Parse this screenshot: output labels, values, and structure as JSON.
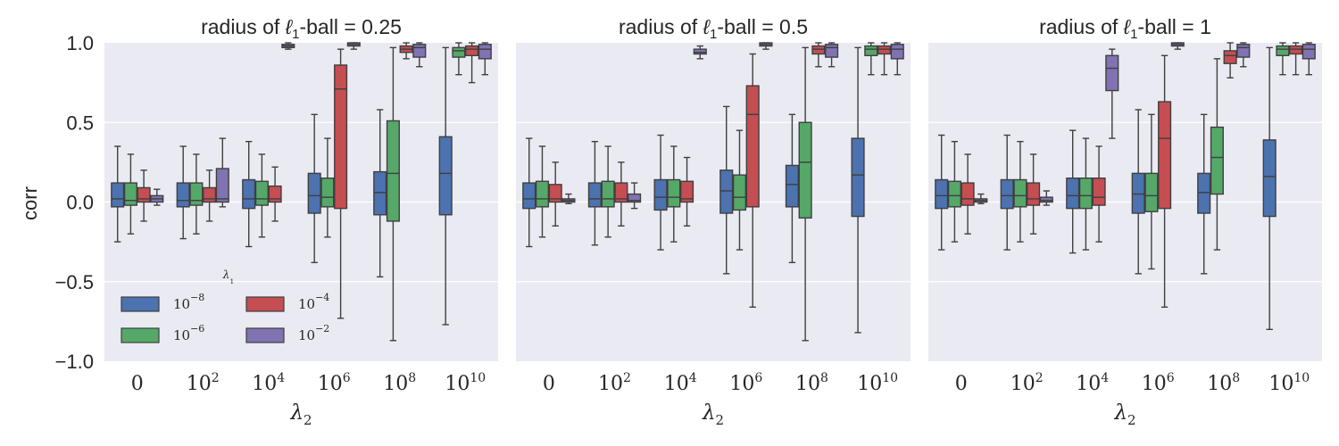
{
  "figure": {
    "ylabel": "corr",
    "xlabel": "λ2",
    "legend_title": "λ1",
    "legend_labels": [
      "10^-8",
      "10^-6",
      "10^-4",
      "10^-2"
    ],
    "legend_placement": "lower-left (first panel)",
    "style": "seaborn darkgrid",
    "background": "#EAEAF2",
    "grid": true
  },
  "colors": {
    "series": [
      "#4C72B0",
      "#55A868",
      "#C44E52",
      "#8172B2"
    ],
    "edge": "#3f3f3f"
  },
  "chart_data": [
    {
      "type": "box",
      "title": "radius of ℓ1-ball = 0.25",
      "xlabel": "λ2",
      "ylabel": "corr",
      "ylim": [
        -1.0,
        1.0
      ],
      "yticks": [
        "1.0",
        "0.5",
        "0.0",
        "−0.5",
        "−1.0"
      ],
      "categories": [
        "0",
        "10^2",
        "10^4",
        "10^6",
        "10^8",
        "10^10"
      ],
      "series": [
        {
          "name": "10^-8",
          "boxes": [
            {
              "q1": -0.03,
              "med": 0.02,
              "q3": 0.12,
              "wlo": -0.25,
              "whi": 0.35
            },
            {
              "q1": -0.03,
              "med": 0.01,
              "q3": 0.12,
              "wlo": -0.23,
              "whi": 0.35
            },
            {
              "q1": -0.04,
              "med": 0.02,
              "q3": 0.14,
              "wlo": -0.28,
              "whi": 0.38
            },
            {
              "q1": -0.07,
              "med": 0.04,
              "q3": 0.18,
              "wlo": -0.38,
              "whi": 0.55
            },
            {
              "q1": -0.08,
              "med": 0.06,
              "q3": 0.19,
              "wlo": -0.47,
              "whi": 0.58
            },
            {
              "q1": -0.08,
              "med": 0.18,
              "q3": 0.41,
              "wlo": -0.77,
              "whi": 0.97
            }
          ]
        },
        {
          "name": "10^-6",
          "boxes": [
            {
              "q1": -0.02,
              "med": 0.01,
              "q3": 0.12,
              "wlo": -0.2,
              "whi": 0.3
            },
            {
              "q1": -0.02,
              "med": 0.01,
              "q3": 0.12,
              "wlo": -0.2,
              "whi": 0.3
            },
            {
              "q1": -0.02,
              "med": 0.02,
              "q3": 0.13,
              "wlo": -0.22,
              "whi": 0.3
            },
            {
              "q1": -0.03,
              "med": 0.03,
              "q3": 0.15,
              "wlo": -0.22,
              "whi": 0.4
            },
            {
              "q1": -0.12,
              "med": 0.18,
              "q3": 0.51,
              "wlo": -0.87,
              "whi": 0.97
            },
            {
              "q1": 0.91,
              "med": 0.95,
              "q3": 0.97,
              "wlo": 0.8,
              "whi": 1.0
            }
          ]
        },
        {
          "name": "10^-4",
          "boxes": [
            {
              "q1": 0.0,
              "med": 0.02,
              "q3": 0.09,
              "wlo": -0.12,
              "whi": 0.2
            },
            {
              "q1": 0.0,
              "med": 0.02,
              "q3": 0.09,
              "wlo": -0.12,
              "whi": 0.2
            },
            {
              "q1": 0.0,
              "med": 0.02,
              "q3": 0.1,
              "wlo": -0.12,
              "whi": 0.22
            },
            {
              "q1": -0.04,
              "med": 0.71,
              "q3": 0.86,
              "wlo": -0.73,
              "whi": 0.96
            },
            {
              "q1": 0.94,
              "med": 0.96,
              "q3": 0.98,
              "wlo": 0.9,
              "whi": 1.0
            },
            {
              "q1": 0.92,
              "med": 0.96,
              "q3": 0.98,
              "wlo": 0.75,
              "whi": 1.0
            }
          ]
        },
        {
          "name": "10^-2",
          "boxes": [
            {
              "q1": 0.0,
              "med": 0.02,
              "q3": 0.04,
              "wlo": -0.02,
              "whi": 0.08
            },
            {
              "q1": 0.0,
              "med": 0.02,
              "q3": 0.21,
              "wlo": -0.03,
              "whi": 0.4
            },
            {
              "q1": 0.97,
              "med": 0.98,
              "q3": 0.99,
              "wlo": 0.96,
              "whi": 1.0
            },
            {
              "q1": 0.98,
              "med": 0.99,
              "q3": 1.0,
              "wlo": 0.96,
              "whi": 1.0
            },
            {
              "q1": 0.91,
              "med": 0.97,
              "q3": 0.99,
              "wlo": 0.85,
              "whi": 1.0
            },
            {
              "q1": 0.9,
              "med": 0.96,
              "q3": 0.99,
              "wlo": 0.8,
              "whi": 1.0
            }
          ]
        }
      ]
    },
    {
      "type": "box",
      "title": "radius of ℓ1-ball = 0.5",
      "xlabel": "λ2",
      "ylim": [
        -1.0,
        1.0
      ],
      "categories": [
        "0",
        "10^2",
        "10^4",
        "10^6",
        "10^8",
        "10^10"
      ],
      "series": [
        {
          "name": "10^-8",
          "boxes": [
            {
              "q1": -0.04,
              "med": 0.02,
              "q3": 0.12,
              "wlo": -0.28,
              "whi": 0.4
            },
            {
              "q1": -0.03,
              "med": 0.02,
              "q3": 0.12,
              "wlo": -0.27,
              "whi": 0.38
            },
            {
              "q1": -0.05,
              "med": 0.03,
              "q3": 0.14,
              "wlo": -0.3,
              "whi": 0.42
            },
            {
              "q1": -0.07,
              "med": 0.07,
              "q3": 0.2,
              "wlo": -0.45,
              "whi": 0.6
            },
            {
              "q1": -0.03,
              "med": 0.11,
              "q3": 0.23,
              "wlo": -0.38,
              "whi": 0.55
            },
            {
              "q1": -0.09,
              "med": 0.17,
              "q3": 0.4,
              "wlo": -0.82,
              "whi": 0.97
            }
          ]
        },
        {
          "name": "10^-6",
          "boxes": [
            {
              "q1": -0.03,
              "med": 0.02,
              "q3": 0.13,
              "wlo": -0.22,
              "whi": 0.35
            },
            {
              "q1": -0.03,
              "med": 0.02,
              "q3": 0.13,
              "wlo": -0.22,
              "whi": 0.35
            },
            {
              "q1": -0.03,
              "med": 0.03,
              "q3": 0.14,
              "wlo": -0.25,
              "whi": 0.35
            },
            {
              "q1": -0.05,
              "med": 0.03,
              "q3": 0.17,
              "wlo": -0.3,
              "whi": 0.45
            },
            {
              "q1": -0.1,
              "med": 0.25,
              "q3": 0.5,
              "wlo": -0.87,
              "whi": 0.97
            },
            {
              "q1": 0.92,
              "med": 0.96,
              "q3": 0.98,
              "wlo": 0.8,
              "whi": 1.0
            }
          ]
        },
        {
          "name": "10^-4",
          "boxes": [
            {
              "q1": 0.0,
              "med": 0.02,
              "q3": 0.11,
              "wlo": -0.15,
              "whi": 0.25
            },
            {
              "q1": 0.0,
              "med": 0.02,
              "q3": 0.12,
              "wlo": -0.15,
              "whi": 0.25
            },
            {
              "q1": 0.0,
              "med": 0.02,
              "q3": 0.13,
              "wlo": -0.15,
              "whi": 0.28
            },
            {
              "q1": -0.03,
              "med": 0.55,
              "q3": 0.73,
              "wlo": -0.66,
              "whi": 0.93
            },
            {
              "q1": 0.93,
              "med": 0.96,
              "q3": 0.98,
              "wlo": 0.85,
              "whi": 1.0
            },
            {
              "q1": 0.93,
              "med": 0.96,
              "q3": 0.98,
              "wlo": 0.8,
              "whi": 1.0
            }
          ]
        },
        {
          "name": "10^-2",
          "boxes": [
            {
              "q1": 0.0,
              "med": 0.01,
              "q3": 0.02,
              "wlo": -0.01,
              "whi": 0.05
            },
            {
              "q1": 0.0,
              "med": 0.01,
              "q3": 0.05,
              "wlo": -0.04,
              "whi": 0.12
            },
            {
              "q1": 0.93,
              "med": 0.94,
              "q3": 0.96,
              "wlo": 0.9,
              "whi": 0.98
            },
            {
              "q1": 0.98,
              "med": 0.99,
              "q3": 1.0,
              "wlo": 0.96,
              "whi": 1.0
            },
            {
              "q1": 0.91,
              "med": 0.97,
              "q3": 0.99,
              "wlo": 0.85,
              "whi": 1.0
            },
            {
              "q1": 0.9,
              "med": 0.96,
              "q3": 0.99,
              "wlo": 0.8,
              "whi": 1.0
            }
          ]
        }
      ]
    },
    {
      "type": "box",
      "title": "radius of ℓ1-ball = 1",
      "xlabel": "λ2",
      "ylim": [
        -1.0,
        1.0
      ],
      "categories": [
        "0",
        "10^2",
        "10^4",
        "10^6",
        "10^8",
        "10^10"
      ],
      "series": [
        {
          "name": "10^-8",
          "boxes": [
            {
              "q1": -0.04,
              "med": 0.04,
              "q3": 0.14,
              "wlo": -0.3,
              "whi": 0.42
            },
            {
              "q1": -0.04,
              "med": 0.04,
              "q3": 0.14,
              "wlo": -0.3,
              "whi": 0.42
            },
            {
              "q1": -0.04,
              "med": 0.04,
              "q3": 0.15,
              "wlo": -0.32,
              "whi": 0.45
            },
            {
              "q1": -0.07,
              "med": 0.05,
              "q3": 0.18,
              "wlo": -0.45,
              "whi": 0.58
            },
            {
              "q1": -0.07,
              "med": 0.06,
              "q3": 0.18,
              "wlo": -0.45,
              "whi": 0.55
            },
            {
              "q1": -0.09,
              "med": 0.16,
              "q3": 0.39,
              "wlo": -0.8,
              "whi": 0.97
            }
          ]
        },
        {
          "name": "10^-6",
          "boxes": [
            {
              "q1": -0.03,
              "med": 0.04,
              "q3": 0.13,
              "wlo": -0.25,
              "whi": 0.38
            },
            {
              "q1": -0.03,
              "med": 0.04,
              "q3": 0.14,
              "wlo": -0.25,
              "whi": 0.38
            },
            {
              "q1": -0.04,
              "med": 0.04,
              "q3": 0.15,
              "wlo": -0.3,
              "whi": 0.4
            },
            {
              "q1": -0.06,
              "med": 0.04,
              "q3": 0.18,
              "wlo": -0.42,
              "whi": 0.55
            },
            {
              "q1": 0.05,
              "med": 0.28,
              "q3": 0.47,
              "wlo": -0.3,
              "whi": 0.9
            },
            {
              "q1": 0.92,
              "med": 0.96,
              "q3": 0.98,
              "wlo": 0.8,
              "whi": 1.0
            }
          ]
        },
        {
          "name": "10^-4",
          "boxes": [
            {
              "q1": -0.02,
              "med": 0.02,
              "q3": 0.12,
              "wlo": -0.2,
              "whi": 0.3
            },
            {
              "q1": -0.02,
              "med": 0.02,
              "q3": 0.12,
              "wlo": -0.2,
              "whi": 0.3
            },
            {
              "q1": -0.02,
              "med": 0.03,
              "q3": 0.15,
              "wlo": -0.25,
              "whi": 0.35
            },
            {
              "q1": -0.04,
              "med": 0.4,
              "q3": 0.63,
              "wlo": -0.66,
              "whi": 0.92
            },
            {
              "q1": 0.87,
              "med": 0.92,
              "q3": 0.95,
              "wlo": 0.78,
              "whi": 1.0
            },
            {
              "q1": 0.93,
              "med": 0.96,
              "q3": 0.98,
              "wlo": 0.8,
              "whi": 1.0
            }
          ]
        },
        {
          "name": "10^-2",
          "boxes": [
            {
              "q1": 0.0,
              "med": 0.01,
              "q3": 0.02,
              "wlo": -0.01,
              "whi": 0.05
            },
            {
              "q1": 0.0,
              "med": 0.01,
              "q3": 0.03,
              "wlo": -0.02,
              "whi": 0.07
            },
            {
              "q1": 0.7,
              "med": 0.84,
              "q3": 0.92,
              "wlo": 0.4,
              "whi": 0.96
            },
            {
              "q1": 0.98,
              "med": 0.99,
              "q3": 1.0,
              "wlo": 0.96,
              "whi": 1.0
            },
            {
              "q1": 0.91,
              "med": 0.97,
              "q3": 0.99,
              "wlo": 0.85,
              "whi": 1.0
            },
            {
              "q1": 0.9,
              "med": 0.96,
              "q3": 0.99,
              "wlo": 0.8,
              "whi": 1.0
            }
          ]
        }
      ]
    }
  ]
}
